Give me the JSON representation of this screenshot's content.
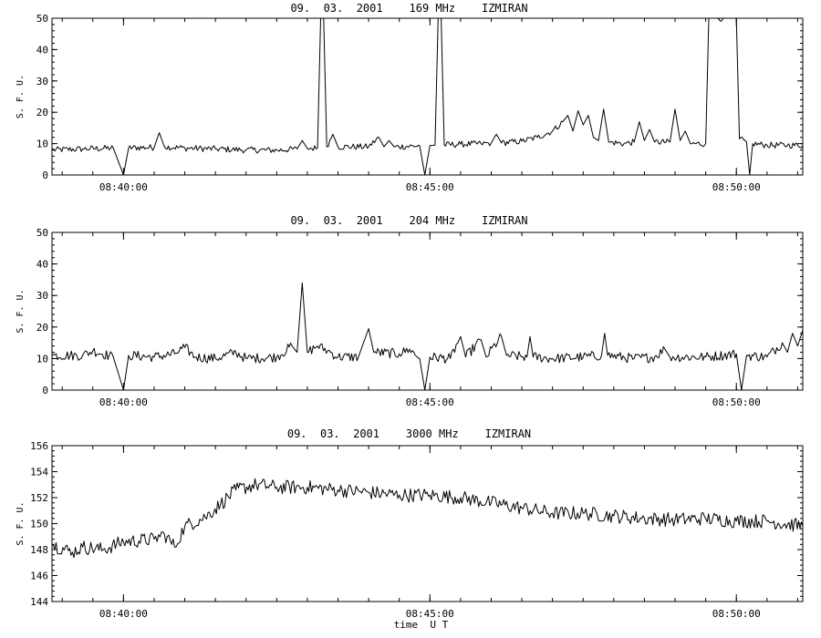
{
  "chart_data": [
    {
      "type": "line",
      "title": "09.  03.  2001    169 MHz    IZMIRAN",
      "ylabel": "S. F. U.",
      "xlabel": "",
      "ylim": [
        0,
        50
      ],
      "yticks": [
        0,
        10,
        20,
        30,
        40,
        50
      ],
      "xlim": [
        "08:38:50",
        "08:51:05"
      ],
      "xticks": [
        "08:40:00",
        "08:45:00",
        "08:50:00"
      ],
      "series": [
        {
          "points": [
            [
              "08:38:50",
              8
            ],
            [
              "08:39:20",
              8.3
            ],
            [
              "08:39:50",
              8.6
            ],
            [
              "08:40:00",
              0
            ],
            [
              "08:40:05",
              8.7
            ],
            [
              "08:40:30",
              8.8
            ],
            [
              "08:40:35",
              13.5
            ],
            [
              "08:40:40",
              9.0
            ],
            [
              "08:41:00",
              8.6
            ],
            [
              "08:41:30",
              8.3
            ],
            [
              "08:42:00",
              8.0
            ],
            [
              "08:42:30",
              7.9
            ],
            [
              "08:42:50",
              8.3
            ],
            [
              "08:42:55",
              11.0
            ],
            [
              "08:43:00",
              8.5
            ],
            [
              "08:43:10",
              8.6
            ],
            [
              "08:43:13",
              50
            ],
            [
              "08:43:16",
              50
            ],
            [
              "08:43:19",
              9.0
            ],
            [
              "08:43:25",
              13.0
            ],
            [
              "08:43:30",
              9.0
            ],
            [
              "08:44:00",
              9.0
            ],
            [
              "08:44:10",
              12.0
            ],
            [
              "08:44:15",
              9.0
            ],
            [
              "08:44:20",
              11.0
            ],
            [
              "08:44:25",
              9.0
            ],
            [
              "08:44:50",
              9.3
            ],
            [
              "08:44:55",
              0
            ],
            [
              "08:45:00",
              9.4
            ],
            [
              "08:45:05",
              9.5
            ],
            [
              "08:45:08",
              50
            ],
            [
              "08:45:11",
              50
            ],
            [
              "08:45:14",
              9.6
            ],
            [
              "08:45:30",
              9.8
            ],
            [
              "08:45:50",
              10.0
            ],
            [
              "08:46:00",
              10.2
            ],
            [
              "08:46:05",
              13.0
            ],
            [
              "08:46:10",
              10.2
            ],
            [
              "08:46:30",
              10.8
            ],
            [
              "08:46:45",
              12.0
            ],
            [
              "08:47:00",
              14.0
            ],
            [
              "08:47:10",
              17.0
            ],
            [
              "08:47:15",
              19.0
            ],
            [
              "08:47:20",
              14.0
            ],
            [
              "08:47:25",
              20.5
            ],
            [
              "08:47:30",
              16.0
            ],
            [
              "08:47:35",
              19.0
            ],
            [
              "08:47:40",
              12.0
            ],
            [
              "08:47:45",
              11.0
            ],
            [
              "08:47:50",
              21.0
            ],
            [
              "08:47:55",
              10.5
            ],
            [
              "08:48:10",
              10.0
            ],
            [
              "08:48:20",
              10.5
            ],
            [
              "08:48:25",
              17.0
            ],
            [
              "08:48:30",
              11.0
            ],
            [
              "08:48:35",
              14.5
            ],
            [
              "08:48:40",
              10.5
            ],
            [
              "08:48:55",
              10.5
            ],
            [
              "08:49:00",
              21.0
            ],
            [
              "08:49:05",
              11.0
            ],
            [
              "08:49:10",
              14.0
            ],
            [
              "08:49:15",
              10.0
            ],
            [
              "08:49:30",
              10.0
            ],
            [
              "08:49:33",
              50
            ],
            [
              "08:49:36",
              50
            ],
            [
              "08:49:39",
              50
            ],
            [
              "08:49:55",
              50
            ],
            [
              "08:50:00",
              50
            ],
            [
              "08:50:03",
              11.5
            ],
            [
              "08:50:10",
              10.5
            ],
            [
              "08:50:13",
              0
            ],
            [
              "08:50:16",
              10.0
            ],
            [
              "08:50:30",
              9.5
            ],
            [
              "08:50:50",
              9.5
            ],
            [
              "08:51:05",
              9.5
            ]
          ]
        }
      ]
    },
    {
      "type": "line",
      "title": "09.  03.  2001    204 MHz    IZMIRAN",
      "ylabel": "S. F. U.",
      "xlabel": "",
      "ylim": [
        0,
        50
      ],
      "yticks": [
        0,
        10,
        20,
        30,
        40,
        50
      ],
      "xlim": [
        "08:38:50",
        "08:51:05"
      ],
      "xticks": [
        "08:40:00",
        "08:45:00",
        "08:50:00"
      ],
      "series": [
        {
          "points": [
            [
              "08:38:50",
              11.0
            ],
            [
              "08:39:20",
              11.0
            ],
            [
              "08:39:30",
              12.5
            ],
            [
              "08:39:50",
              10.5
            ],
            [
              "08:40:00",
              0
            ],
            [
              "08:40:05",
              11.0
            ],
            [
              "08:40:30",
              10.5
            ],
            [
              "08:40:50",
              11.5
            ],
            [
              "08:41:00",
              13.5
            ],
            [
              "08:41:10",
              10.5
            ],
            [
              "08:41:30",
              10.0
            ],
            [
              "08:41:50",
              12.0
            ],
            [
              "08:42:00",
              10.0
            ],
            [
              "08:42:30",
              10.5
            ],
            [
              "08:42:45",
              14.0
            ],
            [
              "08:42:50",
              12.0
            ],
            [
              "08:42:55",
              34.0
            ],
            [
              "08:43:00",
              12.0
            ],
            [
              "08:43:10",
              14.0
            ],
            [
              "08:43:20",
              12.5
            ],
            [
              "08:43:30",
              10.5
            ],
            [
              "08:43:50",
              10.5
            ],
            [
              "08:44:00",
              19.5
            ],
            [
              "08:44:05",
              12.0
            ],
            [
              "08:44:30",
              11.5
            ],
            [
              "08:44:40",
              13.0
            ],
            [
              "08:44:50",
              10.0
            ],
            [
              "08:44:55",
              0
            ],
            [
              "08:45:00",
              10.5
            ],
            [
              "08:45:20",
              10.0
            ],
            [
              "08:45:30",
              17.0
            ],
            [
              "08:45:35",
              10.5
            ],
            [
              "08:45:50",
              16.0
            ],
            [
              "08:45:55",
              10.5
            ],
            [
              "08:46:10",
              17.0
            ],
            [
              "08:46:15",
              11.0
            ],
            [
              "08:46:35",
              10.5
            ],
            [
              "08:46:38",
              17.0
            ],
            [
              "08:46:41",
              10.5
            ],
            [
              "08:47:00",
              10.0
            ],
            [
              "08:47:30",
              10.5
            ],
            [
              "08:47:48",
              11.0
            ],
            [
              "08:47:51",
              18.0
            ],
            [
              "08:47:54",
              11.0
            ],
            [
              "08:48:20",
              10.0
            ],
            [
              "08:48:40",
              10.5
            ],
            [
              "08:48:50",
              13.0
            ],
            [
              "08:48:55",
              10.5
            ],
            [
              "08:49:30",
              10.5
            ],
            [
              "08:50:00",
              11.5
            ],
            [
              "08:50:05",
              0
            ],
            [
              "08:50:10",
              11.0
            ],
            [
              "08:50:30",
              10.5
            ],
            [
              "08:50:45",
              15.0
            ],
            [
              "08:50:50",
              12.0
            ],
            [
              "08:50:55",
              18.0
            ],
            [
              "08:51:00",
              14.0
            ],
            [
              "08:51:05",
              19.0
            ]
          ]
        }
      ]
    },
    {
      "type": "line",
      "title": "09.  03.  2001    3000 MHz    IZMIRAN",
      "ylabel": "S. F. U.",
      "xlabel": "time  U T",
      "ylim": [
        144,
        156
      ],
      "yticks": [
        144,
        146,
        148,
        150,
        152,
        154,
        156
      ],
      "xlim": [
        "08:38:50",
        "08:51:05"
      ],
      "xticks": [
        "08:40:00",
        "08:45:00",
        "08:50:00"
      ],
      "series": [
        {
          "points": [
            [
              "08:38:50",
              148.4
            ],
            [
              "08:39:10",
              147.8
            ],
            [
              "08:39:20",
              148.2
            ],
            [
              "08:39:40",
              148.0
            ],
            [
              "08:40:00",
              148.6
            ],
            [
              "08:40:30",
              148.8
            ],
            [
              "08:40:40",
              149.2
            ],
            [
              "08:40:50",
              148.2
            ],
            [
              "08:41:00",
              149.8
            ],
            [
              "08:41:20",
              150.5
            ],
            [
              "08:41:35",
              151.5
            ],
            [
              "08:41:50",
              152.6
            ],
            [
              "08:42:10",
              153.0
            ],
            [
              "08:42:30",
              152.8
            ],
            [
              "08:43:00",
              152.8
            ],
            [
              "08:43:30",
              152.6
            ],
            [
              "08:44:00",
              152.4
            ],
            [
              "08:44:30",
              152.2
            ],
            [
              "08:45:00",
              152.2
            ],
            [
              "08:45:30",
              152.0
            ],
            [
              "08:46:00",
              151.6
            ],
            [
              "08:46:30",
              151.2
            ],
            [
              "08:47:00",
              150.8
            ],
            [
              "08:47:30",
              150.8
            ],
            [
              "08:48:00",
              150.6
            ],
            [
              "08:48:30",
              150.4
            ],
            [
              "08:49:00",
              150.3
            ],
            [
              "08:49:30",
              150.4
            ],
            [
              "08:50:00",
              150.2
            ],
            [
              "08:50:30",
              150.2
            ],
            [
              "08:51:05",
              149.8
            ]
          ]
        }
      ]
    }
  ]
}
